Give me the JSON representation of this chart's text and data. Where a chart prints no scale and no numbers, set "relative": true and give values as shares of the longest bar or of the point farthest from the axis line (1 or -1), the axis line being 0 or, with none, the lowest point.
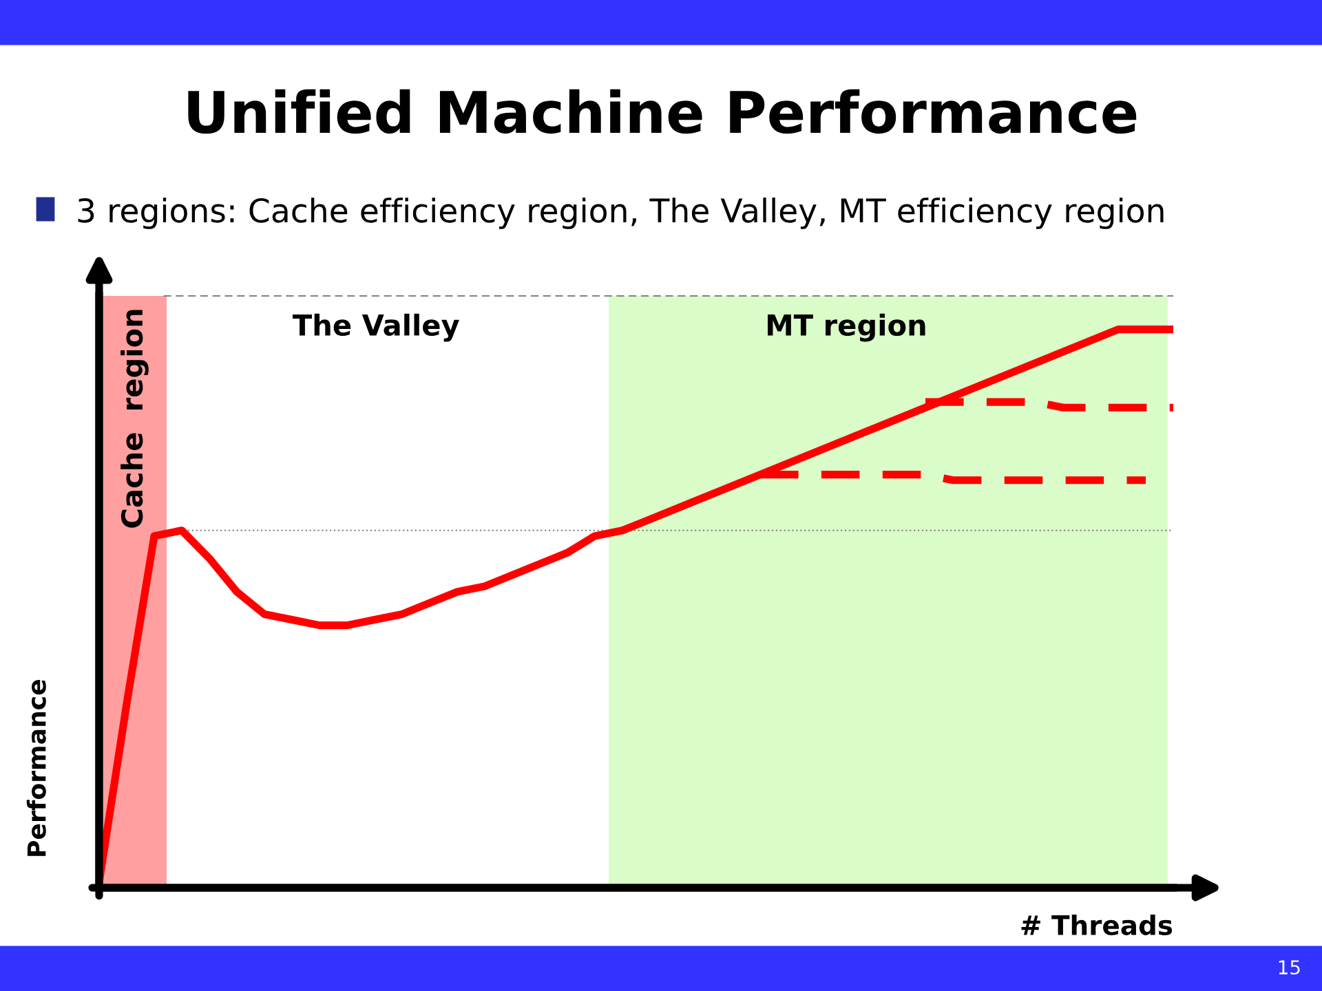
{
  "chart_data": {
    "type": "line",
    "title": "Unified Machine Performance",
    "subtitle": "3 regions: Cache efficiency region, The Valley, MT efficiency region",
    "xlabel": "# Threads",
    "ylabel": "Performance",
    "relative": true,
    "categories": [
      null,
      null,
      null,
      null,
      null,
      null,
      null,
      null,
      null,
      null,
      null,
      null,
      null,
      null,
      null,
      null,
      null,
      null,
      null,
      null,
      null,
      null,
      null,
      null,
      null,
      null,
      null,
      null,
      null,
      null,
      null,
      null,
      null,
      null,
      null,
      null,
      null,
      null,
      null,
      null
    ],
    "series": [
      {
        "color": "#ff0000",
        "line_style": "solid",
        "values": [
          0.01,
          0.33,
          0.63,
          0.64,
          0.59,
          0.53,
          0.49,
          0.48,
          0.47,
          0.47,
          0.48,
          0.49,
          0.51,
          0.53,
          0.54,
          0.56,
          0.58,
          0.6,
          0.63,
          0.64,
          0.66,
          0.68,
          0.7,
          0.72,
          0.74,
          0.76,
          0.78,
          0.8,
          0.82,
          0.84,
          0.86,
          0.88,
          0.9,
          0.92,
          0.94,
          0.96,
          0.98,
          1,
          1,
          1
        ]
      },
      {
        "color": "#ff0000",
        "line_style": "dashed",
        "values": [
          null,
          null,
          null,
          null,
          null,
          null,
          null,
          null,
          null,
          null,
          null,
          null,
          null,
          null,
          null,
          null,
          null,
          null,
          null,
          null,
          null,
          null,
          null,
          null,
          null,
          null,
          null,
          null,
          null,
          null,
          0.87,
          0.87,
          0.87,
          0.87,
          0.87,
          0.86,
          0.86,
          0.86,
          0.86,
          0.86
        ]
      },
      {
        "color": "#ff0000",
        "line_style": "dashed",
        "values": [
          null,
          null,
          null,
          null,
          null,
          null,
          null,
          null,
          null,
          null,
          null,
          null,
          null,
          null,
          null,
          null,
          null,
          null,
          null,
          null,
          null,
          null,
          null,
          null,
          0.74,
          0.74,
          0.74,
          0.74,
          0.74,
          0.74,
          0.74,
          0.73,
          0.73,
          0.73,
          0.73,
          0.73,
          0.73,
          0.73,
          0.73,
          null
        ]
      }
    ],
    "ref_lines": [
      {
        "axis": "y",
        "value": 0.64,
        "line_style": "dotted",
        "color": "#808080"
      },
      {
        "axis": "y",
        "value": 1.06,
        "line_style": "dashed",
        "color": "#808080"
      }
    ],
    "annotations": [
      "Cache  region",
      "The Valley",
      "MT region",
      "15"
    ],
    "legend": false
  }
}
